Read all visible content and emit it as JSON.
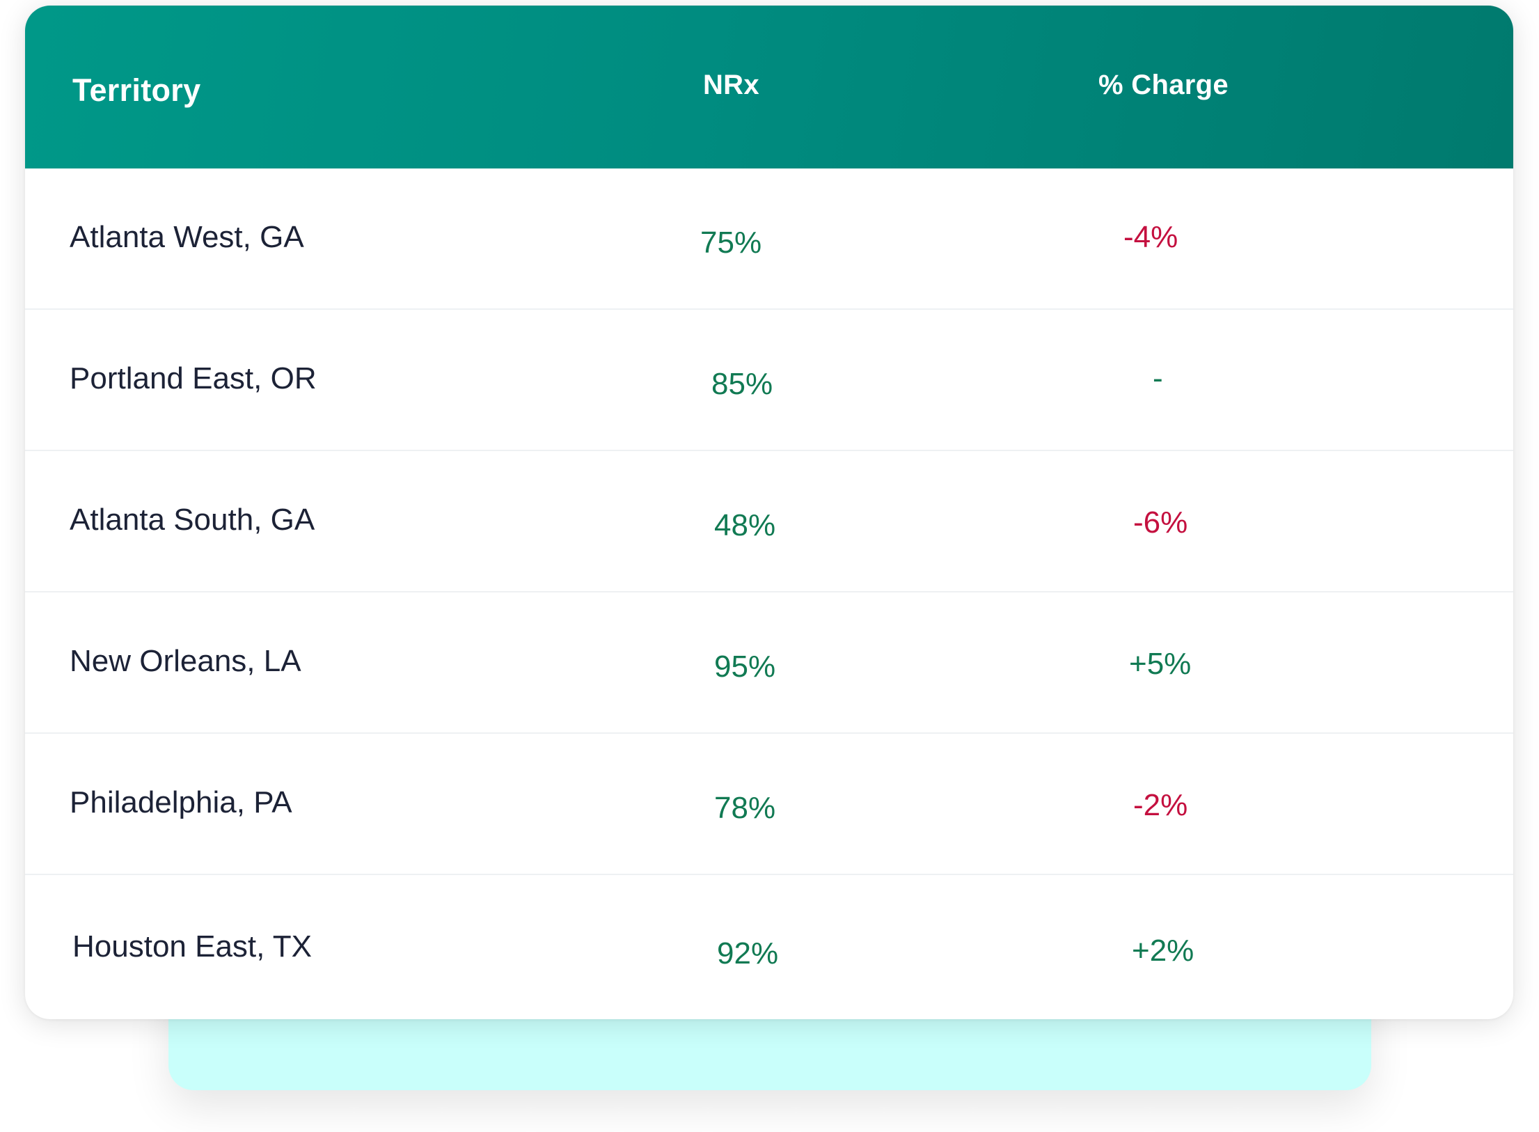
{
  "table": {
    "columns": {
      "territory": "Territory",
      "nrx": "NRx",
      "change": "% Charge"
    },
    "rows": [
      {
        "territory": "Atlanta West, GA",
        "nrx": "75%",
        "change": "-4%",
        "trend": "negative"
      },
      {
        "territory": "Portland East, OR",
        "nrx": "85%",
        "change": "-",
        "trend": "neutral"
      },
      {
        "territory": "Atlanta South, GA",
        "nrx": "48%",
        "change": "-6%",
        "trend": "negative"
      },
      {
        "territory": "New Orleans, LA",
        "nrx": "95%",
        "change": "+5%",
        "trend": "positive"
      },
      {
        "territory": "Philadelphia, PA",
        "nrx": "78%",
        "change": "-2%",
        "trend": "negative"
      },
      {
        "territory": "Houston East, TX",
        "nrx": "92%",
        "change": "+2%",
        "trend": "positive"
      }
    ]
  },
  "colors": {
    "header_start": "#009888",
    "header_end": "#007a6e",
    "positive": "#117a53",
    "negative": "#c4103f",
    "back_card": "#c9fffb"
  }
}
